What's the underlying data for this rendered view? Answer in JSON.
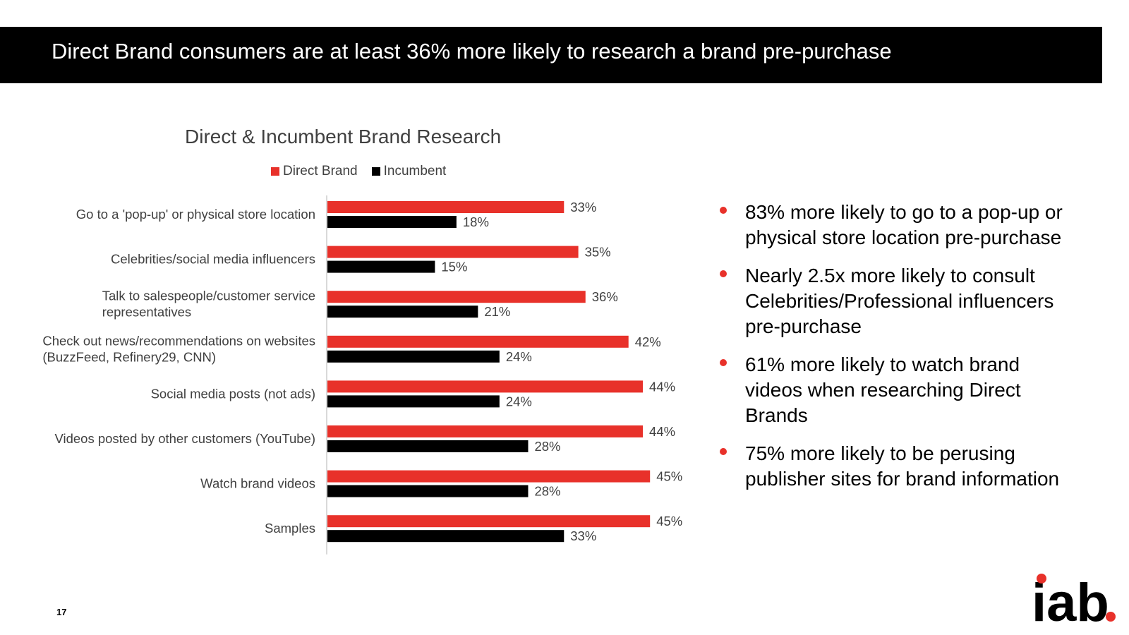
{
  "header": {
    "title": "Direct Brand consumers are at least 36% more likely to research a brand pre-purchase"
  },
  "colors": {
    "direct": "#e8312a",
    "incumbent": "#000000",
    "accent": "#e8312a"
  },
  "bullets": [
    {
      "text": "83% more likely to go to a pop-up or physical store location pre-purchase"
    },
    {
      "text": "Nearly 2.5x more likely to consult Celebrities/Professional influencers pre-purchase"
    },
    {
      "text": "61% more likely to watch brand videos when researching Direct Brands"
    },
    {
      "text": "75% more likely to be perusing publisher sites for brand information"
    }
  ],
  "page_number": "17",
  "logo": {
    "text": "iab",
    "icon": "iab-logo"
  },
  "chart_data": {
    "type": "bar",
    "orientation": "horizontal",
    "title": "Direct & Incumbent Brand Research",
    "legend_position": "top",
    "grid": false,
    "xlim": [
      0,
      50
    ],
    "categories": [
      [
        "Go to a 'pop-up' or physical store location"
      ],
      [
        "Celebrities/social media influencers"
      ],
      [
        "Talk to salespeople/customer service",
        "representatives"
      ],
      [
        "Check out news/recommendations on websites",
        "(BuzzFeed, Refinery29, CNN)"
      ],
      [
        "Social media posts (not ads)"
      ],
      [
        "Videos posted by other customers (YouTube)"
      ],
      [
        "Watch brand videos"
      ],
      [
        "Samples"
      ]
    ],
    "series": [
      {
        "name": "Direct Brand",
        "color": "#e8312a",
        "values": [
          33,
          35,
          36,
          42,
          44,
          44,
          45,
          45
        ],
        "labels": [
          "33%",
          "35%",
          "36%",
          "42%",
          "44%",
          "44%",
          "45%",
          "45%"
        ]
      },
      {
        "name": "Incumbent",
        "color": "#000000",
        "values": [
          18,
          15,
          21,
          24,
          24,
          28,
          28,
          33
        ],
        "labels": [
          "18%",
          "15%",
          "21%",
          "24%",
          "24%",
          "28%",
          "28%",
          "33%"
        ]
      }
    ]
  }
}
